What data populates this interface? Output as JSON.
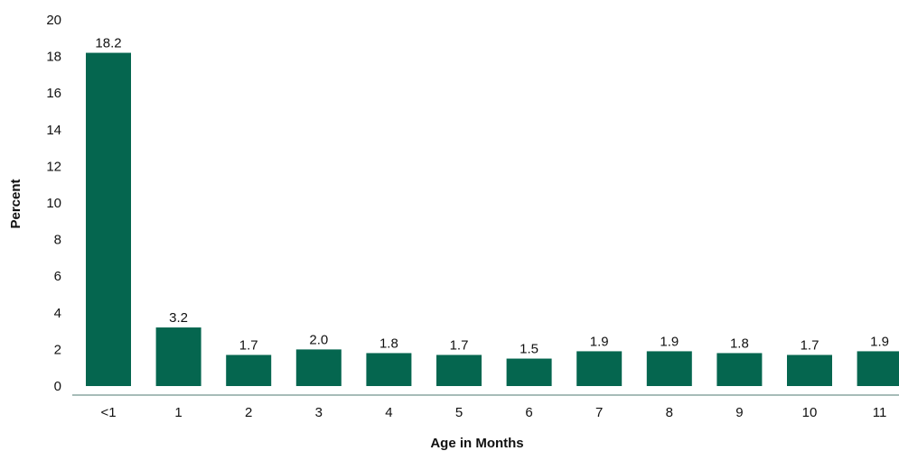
{
  "chart_data": {
    "type": "bar",
    "categories": [
      "<1",
      "1",
      "2",
      "3",
      "4",
      "5",
      "6",
      "7",
      "8",
      "9",
      "10",
      "11"
    ],
    "values": [
      18.2,
      3.2,
      1.7,
      2.0,
      1.8,
      1.7,
      1.5,
      1.9,
      1.9,
      1.8,
      1.7,
      1.9
    ],
    "data_labels": [
      "18.2",
      "3.2",
      "1.7",
      "2.0",
      "1.8",
      "1.7",
      "1.5",
      "1.9",
      "1.9",
      "1.8",
      "1.7",
      "1.9"
    ],
    "xlabel": "Age in Months",
    "ylabel": "Percent",
    "ylim": [
      0,
      20
    ],
    "yticks": [
      "0",
      "2",
      "4",
      "6",
      "8",
      "10",
      "12",
      "14",
      "16",
      "18",
      "20"
    ],
    "grid": false,
    "legend": "none",
    "bar_color": "#05664f",
    "axis_color": "#8aa6a0"
  }
}
